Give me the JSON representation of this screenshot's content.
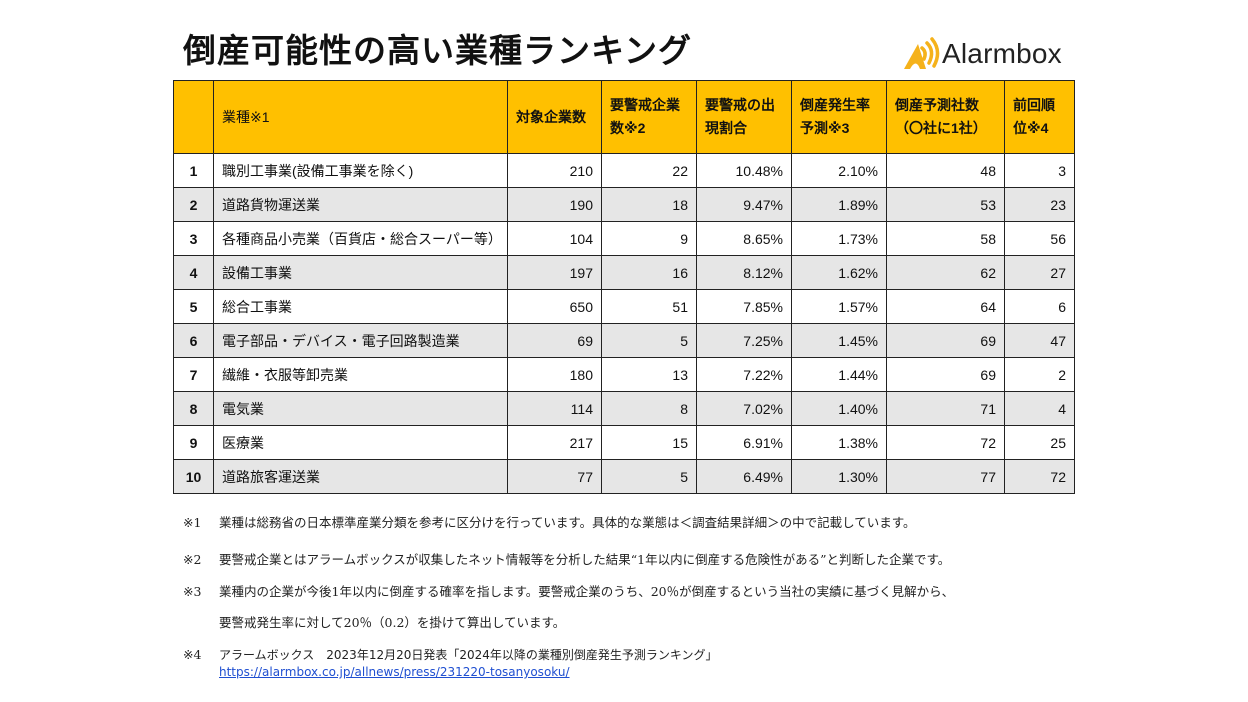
{
  "header": {
    "title": "倒産可能性の高い業種ランキング",
    "logo": {
      "icon": "alarm-signal-icon",
      "text": "Alarmbox",
      "color": "#F5B21B"
    }
  },
  "table": {
    "header_color": "#FFC000",
    "shade_color": "#E6E6E6",
    "columns": [
      {
        "key": "rank",
        "label": ""
      },
      {
        "key": "industry",
        "label": "業種※1"
      },
      {
        "key": "target",
        "label": "対象企業数"
      },
      {
        "key": "warning",
        "label": "要警戒企業数※2"
      },
      {
        "key": "warning_ratio",
        "label": "要警戒の出現割合"
      },
      {
        "key": "bankruptcy_rate",
        "label": "倒産発生率予測※3"
      },
      {
        "key": "predicted",
        "label": "倒産予測社数（〇社に1社）"
      },
      {
        "key": "previous_rank",
        "label": "前回順位※4"
      }
    ],
    "rows": [
      {
        "rank": "1",
        "industry": "職別工事業(設備工事業を除く)",
        "target": "210",
        "warning": "22",
        "warning_ratio": "10.48%",
        "bankruptcy_rate": "2.10%",
        "predicted": "48",
        "previous_rank": "3"
      },
      {
        "rank": "2",
        "industry": "道路貨物運送業",
        "target": "190",
        "warning": "18",
        "warning_ratio": "9.47%",
        "bankruptcy_rate": "1.89%",
        "predicted": "53",
        "previous_rank": "23"
      },
      {
        "rank": "3",
        "industry": "各種商品小売業（百貨店・総合スーパー等）",
        "target": "104",
        "warning": "9",
        "warning_ratio": "8.65%",
        "bankruptcy_rate": "1.73%",
        "predicted": "58",
        "previous_rank": "56"
      },
      {
        "rank": "4",
        "industry": "設備工事業",
        "target": "197",
        "warning": "16",
        "warning_ratio": "8.12%",
        "bankruptcy_rate": "1.62%",
        "predicted": "62",
        "previous_rank": "27"
      },
      {
        "rank": "5",
        "industry": "総合工事業",
        "target": "650",
        "warning": "51",
        "warning_ratio": "7.85%",
        "bankruptcy_rate": "1.57%",
        "predicted": "64",
        "previous_rank": "6"
      },
      {
        "rank": "6",
        "industry": "電子部品・デバイス・電子回路製造業",
        "target": "69",
        "warning": "5",
        "warning_ratio": "7.25%",
        "bankruptcy_rate": "1.45%",
        "predicted": "69",
        "previous_rank": "47"
      },
      {
        "rank": "7",
        "industry": "繊維・衣服等卸売業",
        "target": "180",
        "warning": "13",
        "warning_ratio": "7.22%",
        "bankruptcy_rate": "1.44%",
        "predicted": "69",
        "previous_rank": "2"
      },
      {
        "rank": "8",
        "industry": "電気業",
        "target": "114",
        "warning": "8",
        "warning_ratio": "7.02%",
        "bankruptcy_rate": "1.40%",
        "predicted": "71",
        "previous_rank": "4"
      },
      {
        "rank": "9",
        "industry": "医療業",
        "target": "217",
        "warning": "15",
        "warning_ratio": "6.91%",
        "bankruptcy_rate": "1.38%",
        "predicted": "72",
        "previous_rank": "25"
      },
      {
        "rank": "10",
        "industry": "道路旅客運送業",
        "target": "77",
        "warning": "5",
        "warning_ratio": "6.49%",
        "bankruptcy_rate": "1.30%",
        "predicted": "77",
        "previous_rank": "72"
      }
    ]
  },
  "notes": [
    {
      "mark": "※1",
      "text": "業種は総務省の日本標準産業分類を参考に区分けを行っています。具体的な業態は＜調査結果詳細＞の中で記載しています。"
    },
    {
      "mark": "※2",
      "text": "要警戒企業とはアラームボックスが収集したネット情報等を分析した結果“1年以内に倒産する危険性がある”と判断した企業です。"
    },
    {
      "mark": "※3",
      "text": "業種内の企業が今後1年以内に倒産する確率を指します。要警戒企業のうち、20％が倒産するという当社の実績に基づく見解から、",
      "text2": "要警戒発生率に対して20％（0.2）を掛けて算出しています。"
    },
    {
      "mark": "※4",
      "text": "アラームボックス　2023年12月20日発表「2024年以降の業種別倒産発生予測ランキング」",
      "link": "https://alarmbox.co.jp/allnews/press/231220-tosanyosoku/"
    }
  ]
}
